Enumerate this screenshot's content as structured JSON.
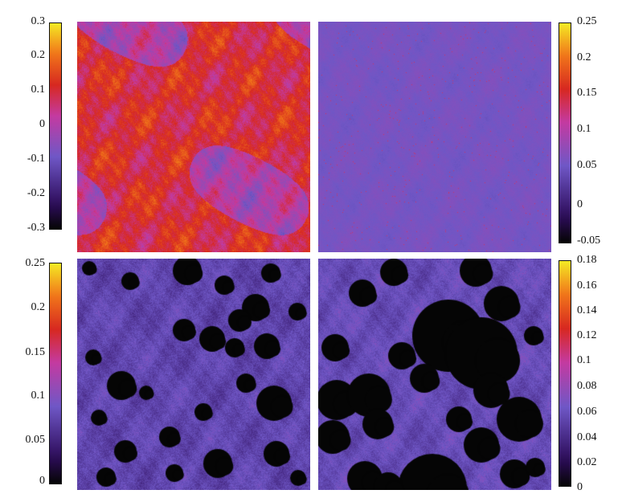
{
  "colorbars": {
    "top_left": {
      "ticks": [
        "0.3",
        "0.2",
        "0.1",
        "0",
        "-0.1",
        "-0.2",
        "-0.3"
      ]
    },
    "top_right": {
      "ticks": [
        "0.25",
        "0.2",
        "0.15",
        "0.1",
        "0.05",
        "0",
        "-0.05"
      ]
    },
    "bottom_left": {
      "ticks": [
        "0.25",
        "0.2",
        "0.15",
        "0.1",
        "0.05",
        "0"
      ]
    },
    "bottom_right": {
      "ticks": [
        "0.18",
        "0.16",
        "0.14",
        "0.12",
        "0.1",
        "0.08",
        "0.06",
        "0.04",
        "0.02",
        "0"
      ]
    }
  },
  "colors": {
    "black": "#050505",
    "purple": "#6f57c6",
    "dark_purple": "#3a1f68",
    "magenta": "#c43aa0",
    "red": "#d72820",
    "orange": "#f27a1a",
    "yellow": "#f4ea24"
  },
  "panels": {
    "top_left": "red-orange field with purple regions",
    "top_right": "mostly purple field with sparse red speckles",
    "bottom_left": "purple textured field with many black holes",
    "bottom_right": "purple textured field with large black holes"
  }
}
